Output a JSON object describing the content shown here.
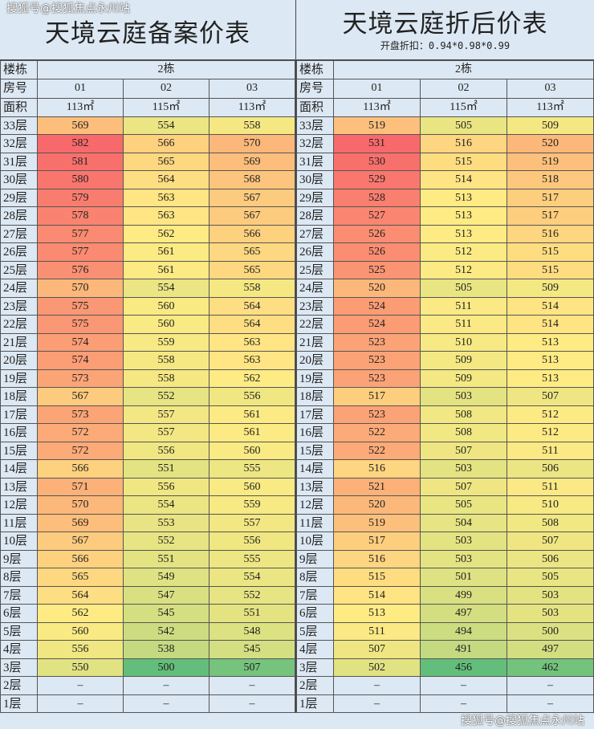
{
  "watermark": "搜狐号@搜狐焦点永州站",
  "color_scale": {
    "min": "#63be7b",
    "mid": "#ffeb84",
    "max": "#f8696b"
  },
  "header_labels": {
    "building": "楼栋",
    "unit": "房号",
    "area": "面积"
  },
  "building": "2栋",
  "units": [
    "01",
    "02",
    "03"
  ],
  "areas": [
    "113㎡",
    "115㎡",
    "113㎡"
  ],
  "floors": [
    "33层",
    "32层",
    "31层",
    "30层",
    "29层",
    "28层",
    "27层",
    "26层",
    "25层",
    "24层",
    "23层",
    "22层",
    "21层",
    "20层",
    "19层",
    "18层",
    "17层",
    "16层",
    "15层",
    "14层",
    "13层",
    "12层",
    "11层",
    "10层",
    "9层",
    "8层",
    "7层",
    "6层",
    "5层",
    "4层",
    "3层",
    "2层",
    "1层"
  ],
  "tables": [
    {
      "title": "天境云庭备案价表",
      "subtitle": "",
      "rows": [
        [
          "569",
          "554",
          "558"
        ],
        [
          "582",
          "566",
          "570"
        ],
        [
          "581",
          "565",
          "569"
        ],
        [
          "580",
          "564",
          "568"
        ],
        [
          "579",
          "563",
          "567"
        ],
        [
          "578",
          "563",
          "567"
        ],
        [
          "577",
          "562",
          "566"
        ],
        [
          "577",
          "561",
          "565"
        ],
        [
          "576",
          "561",
          "565"
        ],
        [
          "570",
          "554",
          "558"
        ],
        [
          "575",
          "560",
          "564"
        ],
        [
          "575",
          "560",
          "564"
        ],
        [
          "574",
          "559",
          "563"
        ],
        [
          "574",
          "558",
          "563"
        ],
        [
          "573",
          "558",
          "562"
        ],
        [
          "567",
          "552",
          "556"
        ],
        [
          "573",
          "557",
          "561"
        ],
        [
          "572",
          "557",
          "561"
        ],
        [
          "572",
          "556",
          "560"
        ],
        [
          "566",
          "551",
          "555"
        ],
        [
          "571",
          "556",
          "560"
        ],
        [
          "570",
          "554",
          "559"
        ],
        [
          "569",
          "553",
          "557"
        ],
        [
          "567",
          "552",
          "556"
        ],
        [
          "566",
          "551",
          "555"
        ],
        [
          "565",
          "549",
          "554"
        ],
        [
          "564",
          "547",
          "552"
        ],
        [
          "562",
          "545",
          "551"
        ],
        [
          "560",
          "542",
          "548"
        ],
        [
          "556",
          "538",
          "545"
        ],
        [
          "550",
          "500",
          "507"
        ],
        [
          "–",
          "–",
          "–"
        ],
        [
          "–",
          "–",
          "–"
        ]
      ]
    },
    {
      "title": "天境云庭折后价表",
      "subtitle": "开盘折扣：0.94*0.98*0.99",
      "rows": [
        [
          "519",
          "505",
          "509"
        ],
        [
          "531",
          "516",
          "520"
        ],
        [
          "530",
          "515",
          "519"
        ],
        [
          "529",
          "514",
          "518"
        ],
        [
          "528",
          "513",
          "517"
        ],
        [
          "527",
          "513",
          "517"
        ],
        [
          "526",
          "513",
          "516"
        ],
        [
          "526",
          "512",
          "515"
        ],
        [
          "525",
          "512",
          "515"
        ],
        [
          "520",
          "505",
          "509"
        ],
        [
          "524",
          "511",
          "514"
        ],
        [
          "524",
          "511",
          "514"
        ],
        [
          "523",
          "510",
          "513"
        ],
        [
          "523",
          "509",
          "513"
        ],
        [
          "523",
          "509",
          "513"
        ],
        [
          "517",
          "503",
          "507"
        ],
        [
          "523",
          "508",
          "512"
        ],
        [
          "522",
          "508",
          "512"
        ],
        [
          "522",
          "507",
          "511"
        ],
        [
          "516",
          "503",
          "506"
        ],
        [
          "521",
          "507",
          "511"
        ],
        [
          "520",
          "505",
          "510"
        ],
        [
          "519",
          "504",
          "508"
        ],
        [
          "517",
          "503",
          "507"
        ],
        [
          "516",
          "503",
          "506"
        ],
        [
          "515",
          "501",
          "505"
        ],
        [
          "514",
          "499",
          "503"
        ],
        [
          "513",
          "497",
          "503"
        ],
        [
          "511",
          "494",
          "500"
        ],
        [
          "507",
          "491",
          "497"
        ],
        [
          "502",
          "456",
          "462"
        ],
        [
          "–",
          "–",
          "–"
        ],
        [
          "–",
          "–",
          "–"
        ]
      ]
    }
  ]
}
